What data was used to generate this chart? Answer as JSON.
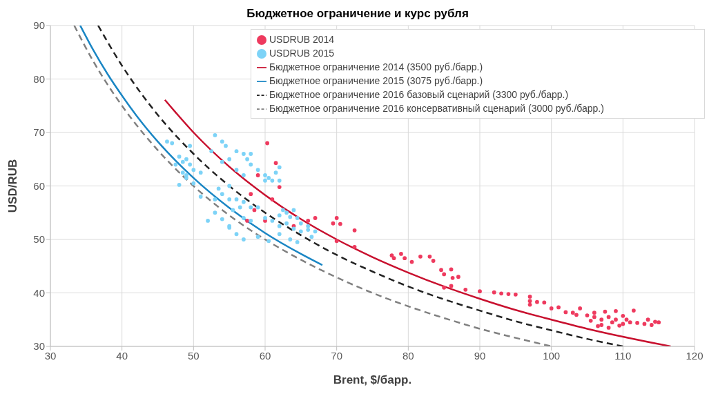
{
  "chart_data": {
    "type": "scatter",
    "title": "Бюджетное ограничение и курс рубля",
    "xlabel": "Brent, $/барр.",
    "ylabel": "USD/RUB",
    "xlim": [
      30,
      120
    ],
    "xticks": [
      30,
      40,
      50,
      60,
      70,
      80,
      90,
      100,
      110,
      120
    ],
    "ylim": [
      30,
      90
    ],
    "yticks": [
      30,
      40,
      50,
      60,
      70,
      80,
      90
    ],
    "grid": true,
    "legend": "top right",
    "series": [
      {
        "name": "USDRUB 2014",
        "marker": "circle",
        "color": "#ee3a5e",
        "x": [
          60.3,
          61.5,
          62,
          61,
          59,
          58,
          58.5,
          57.5,
          60,
          64,
          66,
          67,
          69.5,
          70,
          70.5,
          72.5,
          70,
          72.5,
          77.7,
          78,
          79,
          79.5,
          80.5,
          81.7,
          83,
          83.5,
          84.6,
          85,
          86,
          86.2,
          87,
          85,
          86,
          88,
          90,
          92,
          93,
          94,
          95,
          97,
          97,
          98,
          99,
          97,
          100,
          101,
          102,
          103,
          104,
          103.5,
          105,
          106,
          106,
          107,
          107,
          107.5,
          108,
          108,
          109,
          109,
          110,
          110.5,
          111,
          111.5,
          112,
          113,
          113.5,
          114,
          114.5,
          115,
          106.5,
          108.5,
          109.5,
          105.5,
          110
        ],
        "values": [
          68,
          64.3,
          59.8,
          57.5,
          62,
          58.5,
          55.5,
          53.5,
          53.5,
          52.5,
          53.5,
          54,
          53,
          54,
          52.9,
          51.7,
          49.7,
          48.6,
          47,
          46.5,
          47.3,
          46.5,
          45.8,
          46.8,
          46.8,
          46,
          44.3,
          43.5,
          44.4,
          42.8,
          43,
          41,
          41.3,
          40.6,
          40.3,
          40.1,
          39.9,
          39.8,
          39.7,
          39.3,
          38.5,
          38.3,
          38.2,
          37.8,
          37.1,
          37.3,
          36.4,
          36.3,
          37.1,
          35.9,
          35.8,
          36.3,
          35.5,
          35,
          34,
          36.5,
          35.5,
          33.5,
          35,
          36.6,
          35.7,
          35,
          34.5,
          36.7,
          34.4,
          34.2,
          35,
          34,
          34.6,
          34.5,
          33.8,
          34.5,
          33.9,
          34.8,
          34.2
        ]
      },
      {
        "name": "USDRUB 2015",
        "marker": "circle",
        "color": "#7dd3f7",
        "x": [
          46.3,
          47,
          49.5,
          48,
          47.5,
          48.5,
          49,
          49.5,
          50,
          48.5,
          49,
          49,
          51,
          50,
          48,
          53,
          54,
          54.5,
          52.5,
          56,
          57,
          58,
          57.5,
          55,
          54,
          56,
          57,
          58,
          59,
          60,
          60.5,
          61,
          61.5,
          62,
          62,
          60,
          55,
          53.5,
          54,
          55,
          56,
          57,
          58,
          55.5,
          56.5,
          59,
          57,
          58,
          53,
          54,
          55,
          60,
          61,
          62,
          62.5,
          63,
          63.5,
          64,
          64.5,
          65,
          63,
          62,
          64,
          65,
          66,
          66.5,
          62,
          63.5,
          64.5,
          59,
          56,
          57,
          55,
          53,
          51,
          52,
          60.5,
          67,
          66
        ],
        "values": [
          68.3,
          68,
          67.5,
          65.5,
          64,
          64.5,
          65,
          64,
          63,
          62.5,
          62,
          61.5,
          62.5,
          60.5,
          60.2,
          69.5,
          68.3,
          67.5,
          66.5,
          66.5,
          66,
          66,
          65,
          65,
          64.5,
          63,
          62,
          64,
          63,
          62,
          61.5,
          61,
          62.5,
          63.5,
          61,
          61,
          60,
          59.5,
          58.5,
          57.5,
          57.5,
          57,
          56,
          55.5,
          56,
          56,
          54,
          53.5,
          55,
          53.8,
          52.2,
          54,
          53.5,
          54.5,
          55.5,
          55,
          54.2,
          55.5,
          54,
          53,
          53,
          52.5,
          52,
          51.5,
          51.8,
          50.5,
          51,
          50,
          49.5,
          50.5,
          51,
          50,
          52.5,
          57.5,
          58,
          53.5,
          49.7,
          51.5,
          52.5
        ]
      },
      {
        "name": "Бюджетное ограничение 2014 (3500 руб./барр.)",
        "type": "line",
        "marker": "none",
        "line_style": "solid",
        "color": "#c8102e",
        "x": [
          46,
          50,
          55,
          60,
          65,
          70,
          75,
          80,
          85,
          90,
          95,
          100,
          105,
          110,
          116.67
        ],
        "values": [
          76.1,
          70,
          63.6,
          58.3,
          53.8,
          50,
          46.7,
          43.8,
          41.2,
          38.9,
          36.8,
          35,
          33.3,
          31.8,
          30
        ]
      },
      {
        "name": "Бюджетное ограничение 2015 (3075 руб./барр.)",
        "type": "line",
        "marker": "none",
        "line_style": "solid",
        "color": "#1a86c4",
        "x": [
          34.17,
          36,
          38,
          40,
          42,
          45,
          50,
          55,
          60,
          65,
          68
        ],
        "values": [
          90,
          85.4,
          80.9,
          76.9,
          73.2,
          68.3,
          61.5,
          55.9,
          51.2,
          47.3,
          45.2
        ]
      },
      {
        "name": "Бюджетное ограничение 2016 базовый сценарий (3300 руб./барр.)",
        "type": "line",
        "marker": "none",
        "line_style": "dashed",
        "color": "#222222",
        "x": [
          36.67,
          40,
          45,
          50,
          55,
          60,
          65,
          70,
          75,
          80,
          85,
          90,
          95,
          100,
          105,
          110
        ],
        "values": [
          90,
          82.5,
          73.3,
          66,
          60,
          55,
          50.8,
          47.1,
          44,
          41.2,
          38.8,
          36.7,
          34.7,
          33,
          31.4,
          30
        ]
      },
      {
        "name": "Бюджетное ограничение 2016 консервативный сценарий (3000 руб./барр.)",
        "type": "line",
        "marker": "none",
        "line_style": "dashed",
        "color": "#808080",
        "x": [
          33.33,
          36,
          40,
          45,
          50,
          55,
          60,
          65,
          70,
          75,
          80,
          85,
          90,
          95,
          100
        ],
        "values": [
          90,
          83.3,
          75,
          66.7,
          60,
          54.5,
          50,
          46.2,
          42.9,
          40,
          37.5,
          35.3,
          33.3,
          31.6,
          30
        ]
      }
    ]
  }
}
